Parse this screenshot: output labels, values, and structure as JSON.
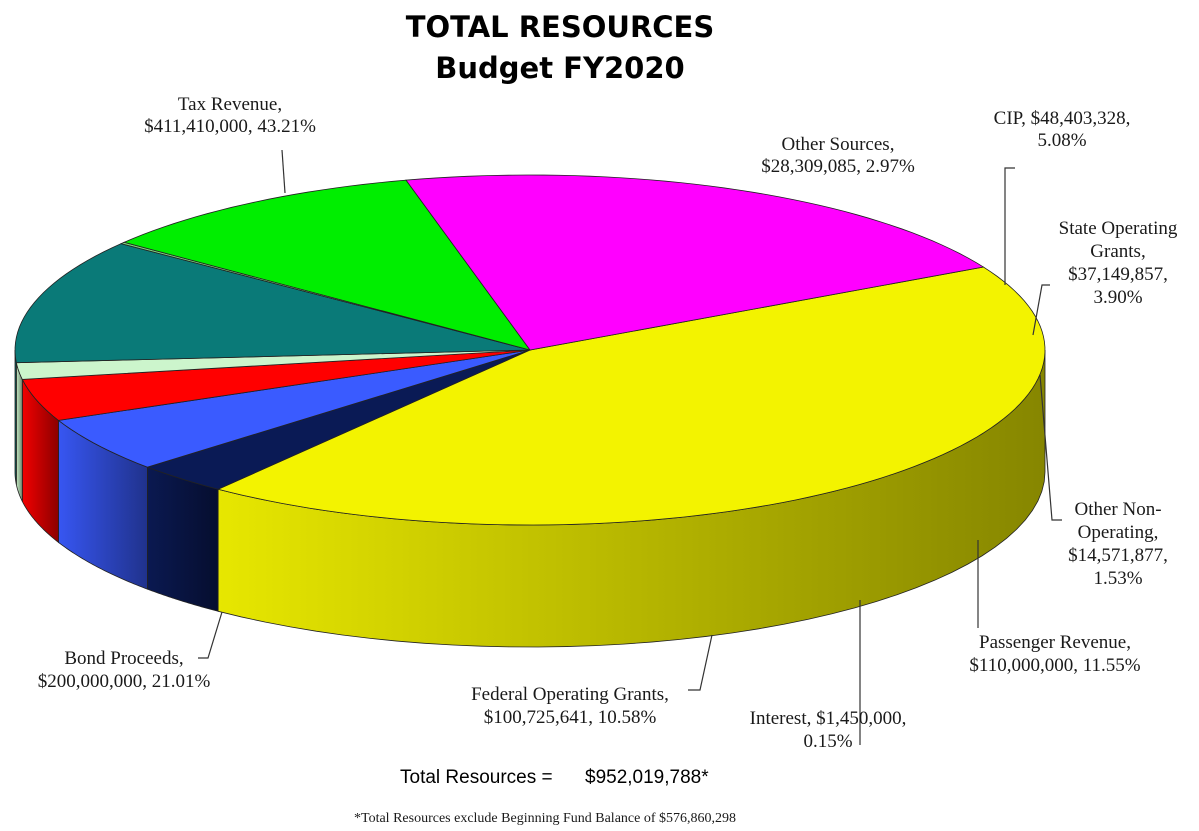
{
  "chart_data": {
    "type": "pie",
    "style": "3d",
    "title": "TOTAL RESOURCES",
    "subtitle": "Budget FY2020",
    "slices": [
      {
        "key": "tax_revenue",
        "value": 411410000,
        "percent": 43.21,
        "color": "#f3f300",
        "label_lines": [
          "Tax Revenue,",
          "$411,410,000, 43.21%"
        ]
      },
      {
        "key": "other_sources",
        "value": 28309085,
        "percent": 2.97,
        "color": "#0a1a55",
        "label_lines": [
          "Other Sources,",
          "$28,309,085, 2.97%"
        ]
      },
      {
        "key": "cip",
        "value": 48403328,
        "percent": 5.08,
        "color": "#3a5bff",
        "label_lines": [
          "CIP, $48,403,328,",
          "5.08%"
        ]
      },
      {
        "key": "state_operating_grants",
        "value": 37149857,
        "percent": 3.9,
        "color": "#ff0000",
        "label_lines": [
          "State Operating",
          "Grants,",
          "$37,149,857,",
          "3.90%"
        ]
      },
      {
        "key": "other_non_operating",
        "value": 14571877,
        "percent": 1.53,
        "color": "#ccf5cc",
        "label_lines": [
          "Other Non-",
          "Operating,",
          "$14,571,877,",
          "1.53%"
        ]
      },
      {
        "key": "passenger_revenue",
        "value": 110000000,
        "percent": 11.55,
        "color": "#0a7a78",
        "label_lines": [
          "Passenger Revenue,",
          "$110,000,000, 11.55%"
        ]
      },
      {
        "key": "interest",
        "value": 1450000,
        "percent": 0.15,
        "color": "#7fd67f",
        "label_lines": [
          "Interest, $1,450,000,",
          "0.15%"
        ]
      },
      {
        "key": "federal_operating_grants",
        "value": 100725641,
        "percent": 10.58,
        "color": "#00ee00",
        "label_lines": [
          "Federal Operating Grants,",
          "$100,725,641, 10.58%"
        ]
      },
      {
        "key": "bond_proceeds",
        "value": 200000000,
        "percent": 21.01,
        "color": "#ff00ff",
        "label_lines": [
          "Bond Proceeds,",
          "$200,000,000, 21.01%"
        ]
      }
    ],
    "total_label": "Total Resources =",
    "total_value": "$952,019,788*",
    "footnote": "*Total Resources exclude Beginning Fund Balance of $576,860,298"
  }
}
